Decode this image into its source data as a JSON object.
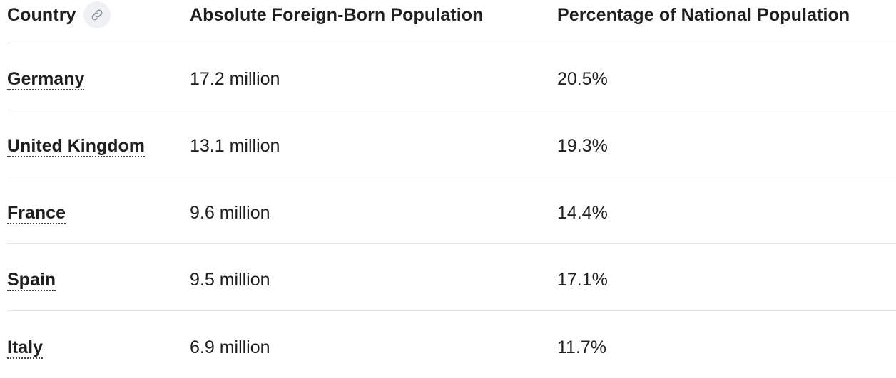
{
  "table": {
    "headers": {
      "country": "Country",
      "absolute": "Absolute Foreign-Born Population",
      "percentage": "Percentage of National Population"
    },
    "anchor_icon": "link-icon",
    "rows": [
      {
        "country": "Germany",
        "absolute": "17.2 million",
        "percentage": "20.5%"
      },
      {
        "country": "United Kingdom",
        "absolute": "13.1 million",
        "percentage": "19.3%"
      },
      {
        "country": "France",
        "absolute": "9.6 million",
        "percentage": "14.4%"
      },
      {
        "country": "Spain",
        "absolute": "9.5 million",
        "percentage": "17.1%"
      },
      {
        "country": "Italy",
        "absolute": "6.9 million",
        "percentage": "11.7%"
      }
    ]
  }
}
